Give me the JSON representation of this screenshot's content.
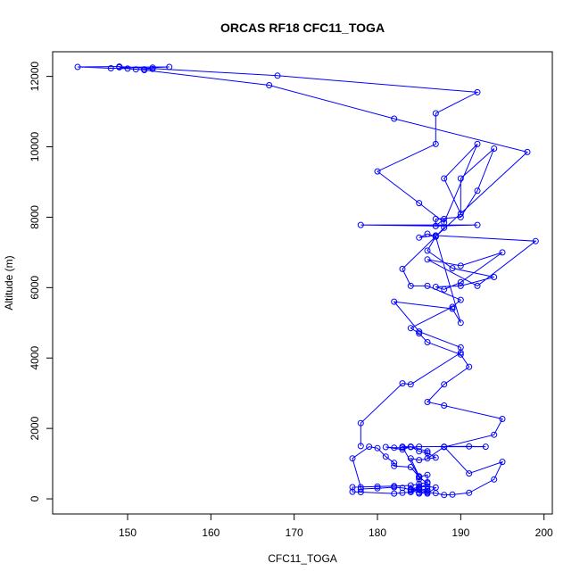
{
  "chart_data": {
    "type": "line",
    "title": "ORCAS RF18 CFC11_TOGA",
    "xlabel": "CFC11_TOGA",
    "ylabel": "Altitude (m)",
    "xlim": [
      141,
      201
    ],
    "ylim": [
      -430,
      12700
    ],
    "xticks": [
      150,
      160,
      170,
      180,
      190,
      200
    ],
    "yticks": [
      0,
      2000,
      4000,
      6000,
      8000,
      10000,
      12000
    ],
    "series_color": "#0000ff",
    "grid": false,
    "legend": "none",
    "points": [
      [
        185,
        150
      ],
      [
        186,
        180
      ],
      [
        187,
        160
      ],
      [
        188,
        110
      ],
      [
        189,
        120
      ],
      [
        191,
        170
      ],
      [
        194,
        550
      ],
      [
        195,
        1050
      ],
      [
        191,
        720
      ],
      [
        188,
        1480
      ],
      [
        193,
        1480
      ],
      [
        191,
        1490
      ],
      [
        185,
        1480
      ],
      [
        184,
        1470
      ],
      [
        183,
        1450
      ],
      [
        182,
        1450
      ],
      [
        181,
        1470
      ],
      [
        183,
        1400
      ],
      [
        184,
        1480
      ],
      [
        185,
        1350
      ],
      [
        186,
        1300
      ],
      [
        187,
        1170
      ],
      [
        185,
        1100
      ],
      [
        184,
        1150
      ],
      [
        185,
        640
      ],
      [
        185,
        620
      ],
      [
        184,
        900
      ],
      [
        182,
        930
      ],
      [
        182,
        1020
      ],
      [
        181,
        1200
      ],
      [
        180,
        1440
      ],
      [
        179,
        1480
      ],
      [
        177,
        1150
      ],
      [
        178,
        330
      ],
      [
        178,
        280
      ],
      [
        180,
        300
      ],
      [
        182,
        330
      ],
      [
        183,
        310
      ],
      [
        184,
        260
      ],
      [
        185,
        340
      ],
      [
        186,
        350
      ],
      [
        187,
        320
      ],
      [
        186,
        150
      ],
      [
        186,
        260
      ],
      [
        185,
        280
      ],
      [
        184,
        190
      ],
      [
        183,
        170
      ],
      [
        182,
        150
      ],
      [
        178,
        190
      ],
      [
        177,
        200
      ],
      [
        177,
        330
      ],
      [
        180,
        350
      ],
      [
        182,
        360
      ],
      [
        184,
        380
      ],
      [
        185,
        420
      ],
      [
        186,
        470
      ],
      [
        186,
        680
      ],
      [
        185,
        620
      ],
      [
        186,
        440
      ],
      [
        185,
        300
      ],
      [
        184,
        230
      ],
      [
        185,
        180
      ],
      [
        186,
        220
      ],
      [
        185,
        250
      ],
      [
        184,
        280
      ],
      [
        185,
        330
      ],
      [
        185,
        560
      ],
      [
        185,
        620
      ],
      [
        183,
        1480
      ],
      [
        184,
        1480
      ],
      [
        186,
        1350
      ],
      [
        186,
        1150
      ],
      [
        188,
        1470
      ],
      [
        194,
        1820
      ],
      [
        195,
        2270
      ],
      [
        188,
        2650
      ],
      [
        186,
        2750
      ],
      [
        188,
        3250
      ],
      [
        191,
        3750
      ],
      [
        190,
        4100
      ],
      [
        186,
        4450
      ],
      [
        185,
        4700
      ],
      [
        184,
        4850
      ],
      [
        189,
        5450
      ],
      [
        190,
        5650
      ],
      [
        186,
        6050
      ],
      [
        184,
        6050
      ],
      [
        183,
        6530
      ],
      [
        187,
        7450
      ],
      [
        186,
        7530
      ],
      [
        185,
        7420
      ],
      [
        187,
        7480
      ],
      [
        199,
        7320
      ],
      [
        192,
        6050
      ],
      [
        186,
        6800
      ],
      [
        190,
        6620
      ],
      [
        195,
        7000
      ],
      [
        190,
        6150
      ],
      [
        188,
        5950
      ],
      [
        187,
        6020
      ],
      [
        190,
        6050
      ],
      [
        194,
        6300
      ],
      [
        189,
        6550
      ],
      [
        186,
        7050
      ],
      [
        187,
        7450
      ],
      [
        188,
        7700
      ],
      [
        188,
        7950
      ],
      [
        187,
        7750
      ],
      [
        178,
        7780
      ],
      [
        192,
        7780
      ],
      [
        187,
        7750
      ],
      [
        187,
        7950
      ],
      [
        190,
        8000
      ],
      [
        192,
        8750
      ],
      [
        194,
        9950
      ],
      [
        190,
        9100
      ],
      [
        190,
        8100
      ],
      [
        188,
        9100
      ],
      [
        192,
        10080
      ],
      [
        188,
        7850
      ],
      [
        185,
        8400
      ],
      [
        180,
        9300
      ],
      [
        187,
        10080
      ],
      [
        187,
        10950
      ],
      [
        192,
        11550
      ],
      [
        168,
        12020
      ],
      [
        149,
        12280
      ],
      [
        144,
        12270
      ],
      [
        148,
        12230
      ],
      [
        150,
        12220
      ],
      [
        151,
        12200
      ],
      [
        152,
        12200
      ],
      [
        153,
        12210
      ],
      [
        153,
        12250
      ],
      [
        155,
        12270
      ],
      [
        149,
        12260
      ],
      [
        152,
        12180
      ],
      [
        167,
        11750
      ],
      [
        182,
        10800
      ],
      [
        198,
        9850
      ],
      [
        187,
        7450
      ],
      [
        190,
        5000
      ],
      [
        189,
        5400
      ],
      [
        182,
        5600
      ],
      [
        185,
        4750
      ],
      [
        190,
        4300
      ],
      [
        190,
        4150
      ],
      [
        184,
        3250
      ],
      [
        183,
        3280
      ],
      [
        178,
        2150
      ],
      [
        178,
        1500
      ]
    ]
  }
}
